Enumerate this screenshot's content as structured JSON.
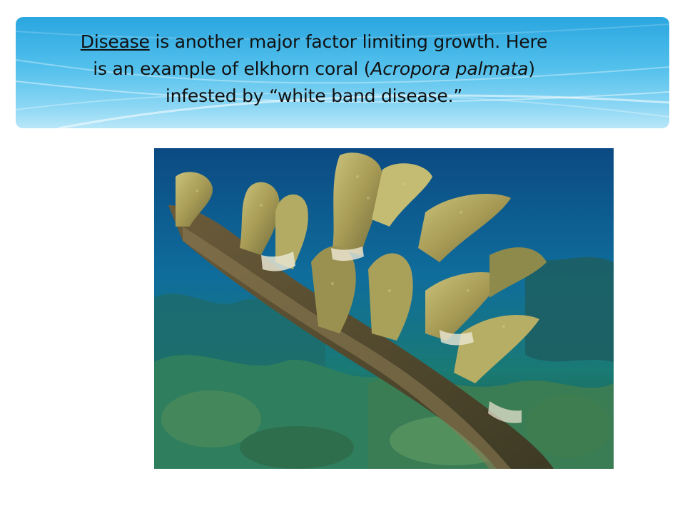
{
  "slide": {
    "title": {
      "line1_underlined": "Disease",
      "line1_rest": " is another major factor limiting growth.  Here",
      "line2_start": "is an example of elkhorn coral (",
      "line2_italic": "Acropora palmata",
      "line2_end": ")",
      "line3": "infested by “white band disease.”"
    },
    "photo": {
      "subject": "elkhorn coral with white band disease"
    },
    "theme_colors": {
      "banner_top": "#2aa6e0",
      "banner_bottom": "#b9e7f8",
      "text": "#111111"
    }
  }
}
